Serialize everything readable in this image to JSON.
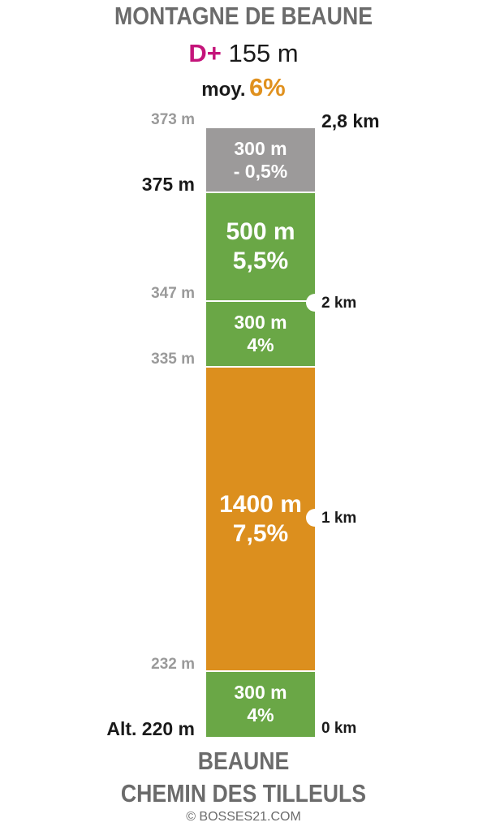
{
  "title": "MONTAGNE DE BEAUNE",
  "dplus": {
    "label": "D+",
    "value": "155 m"
  },
  "average": {
    "label": "moy.",
    "value": "6%"
  },
  "segments": [
    {
      "length": "300 m",
      "gradient": "- 0,5%",
      "color": "#9c9a9a"
    },
    {
      "length": "500 m",
      "gradient": "5,5%",
      "color": "#6aa746"
    },
    {
      "length": "300 m",
      "gradient": "4%",
      "color": "#6aa746"
    },
    {
      "length": "1400 m",
      "gradient": "7,5%",
      "color": "#dc8f1e"
    },
    {
      "length": "300 m",
      "gradient": "4%",
      "color": "#6aa746"
    }
  ],
  "altitudes": {
    "top": "373 m",
    "summit": "375 m",
    "a347": "347 m",
    "a335": "335 m",
    "a232": "232 m",
    "start": "Alt. 220 m"
  },
  "distances": {
    "end": "2,8 km",
    "km2": "2 km",
    "km1": "1 km",
    "km0": "0 km"
  },
  "start_place": {
    "line1": "BEAUNE",
    "line2": "CHEMIN DES TILLEULS"
  },
  "copyright": "© BOSSES21.COM"
}
